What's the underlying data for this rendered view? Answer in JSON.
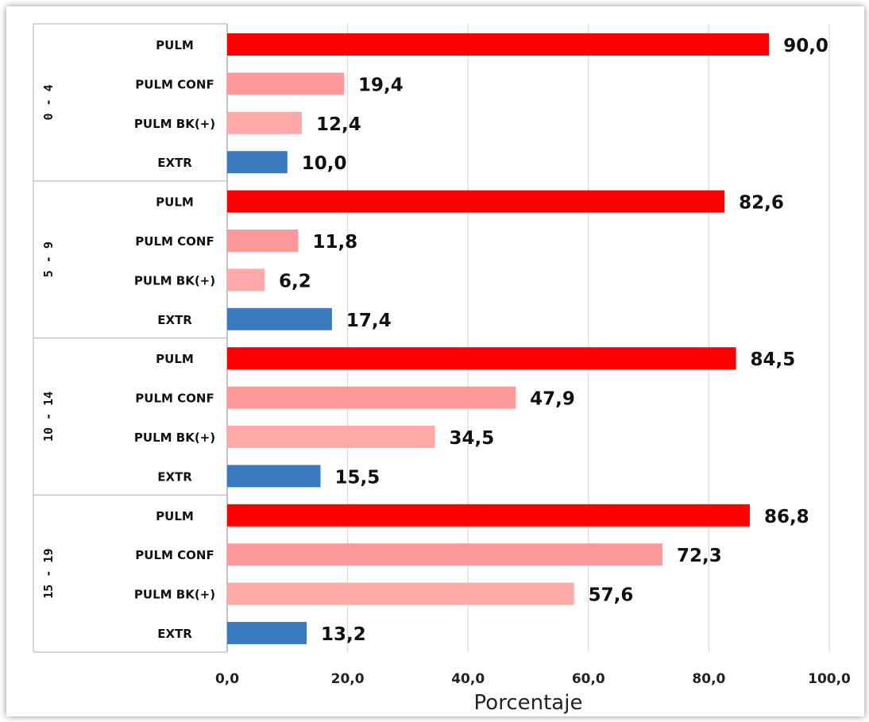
{
  "chart_data": {
    "type": "bar",
    "orientation": "horizontal",
    "xlabel": "Porcentaje",
    "xlim": [
      0,
      100
    ],
    "x_ticks": [
      "0,0",
      "20,0",
      "40,0",
      "60,0",
      "80,0",
      "100,0"
    ],
    "grid": "vertical",
    "colors": {
      "PULM": "#ff0000",
      "PULM CONF": "#ff9999",
      "PULM BK(+)": "#ffa8a8",
      "EXTR": "#3a7abf"
    },
    "groups": [
      {
        "name": "0 - 4",
        "bars": [
          {
            "label": "PULM",
            "value": 90.0,
            "display": "90,0"
          },
          {
            "label": "PULM CONF",
            "value": 19.4,
            "display": "19,4"
          },
          {
            "label": "PULM BK(+)",
            "value": 12.4,
            "display": "12,4"
          },
          {
            "label": "EXTR",
            "value": 10.0,
            "display": "10,0"
          }
        ]
      },
      {
        "name": "5 - 9",
        "bars": [
          {
            "label": "PULM",
            "value": 82.6,
            "display": "82,6"
          },
          {
            "label": "PULM CONF",
            "value": 11.8,
            "display": "11,8"
          },
          {
            "label": "PULM BK(+)",
            "value": 6.2,
            "display": "6,2"
          },
          {
            "label": "EXTR",
            "value": 17.4,
            "display": "17,4"
          }
        ]
      },
      {
        "name": "10 - 14",
        "bars": [
          {
            "label": "PULM",
            "value": 84.5,
            "display": "84,5"
          },
          {
            "label": "PULM CONF",
            "value": 47.9,
            "display": "47,9"
          },
          {
            "label": "PULM BK(+)",
            "value": 34.5,
            "display": "34,5"
          },
          {
            "label": "EXTR",
            "value": 15.5,
            "display": "15,5"
          }
        ]
      },
      {
        "name": "15 - 19",
        "bars": [
          {
            "label": "PULM",
            "value": 86.8,
            "display": "86,8"
          },
          {
            "label": "PULM CONF",
            "value": 72.3,
            "display": "72,3"
          },
          {
            "label": "PULM BK(+)",
            "value": 57.6,
            "display": "57,6"
          },
          {
            "label": "EXTR",
            "value": 13.2,
            "display": "13,2"
          }
        ]
      }
    ]
  }
}
